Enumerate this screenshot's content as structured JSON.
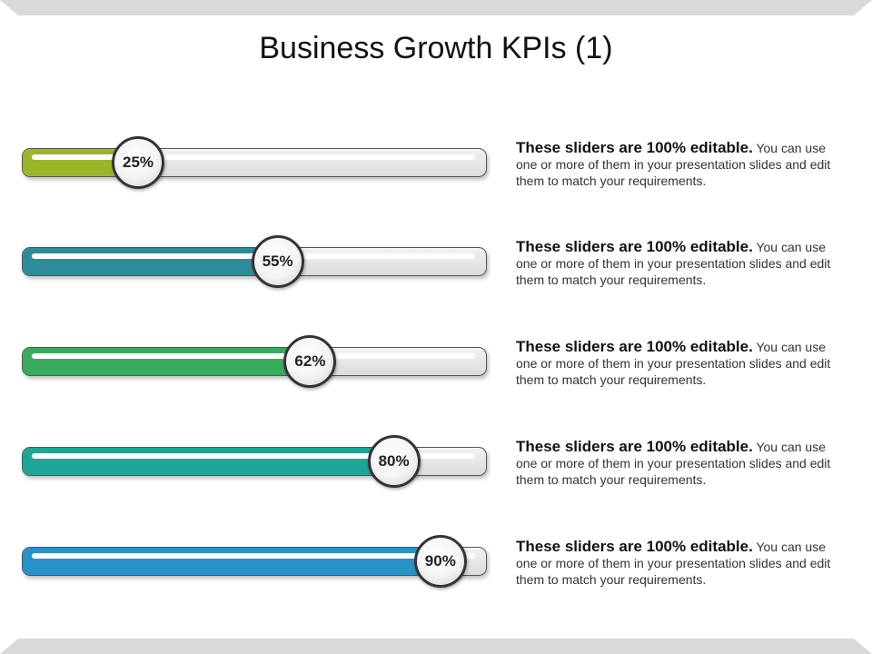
{
  "title": "Business Growth KPIs (1)",
  "sliders": [
    {
      "value": 25,
      "label": "25%",
      "color": "#9ab628",
      "heading": "These sliders are 100% editable.",
      "text": " You can use one or more of them in your presentation slides and edit them to match your requirements."
    },
    {
      "value": 55,
      "label": "55%",
      "color": "#2d8c99",
      "heading": "These sliders are 100% editable.",
      "text": " You can use one or more of them in your presentation slides and edit them to match your requirements."
    },
    {
      "value": 62,
      "label": "62%",
      "color": "#3aaa5f",
      "heading": "These sliders are 100% editable.",
      "text": " You can use one or more of them in your presentation slides and edit them to match your requirements."
    },
    {
      "value": 80,
      "label": "80%",
      "color": "#1ea595",
      "heading": "These sliders are 100% editable.",
      "text": " You can use one or more of them in your presentation slides and edit them to match your requirements."
    },
    {
      "value": 90,
      "label": "90%",
      "color": "#2a90c8",
      "heading": "These sliders are 100% editable.",
      "text": " You can use one or more of them in your presentation slides and edit them to match your requirements."
    }
  ]
}
